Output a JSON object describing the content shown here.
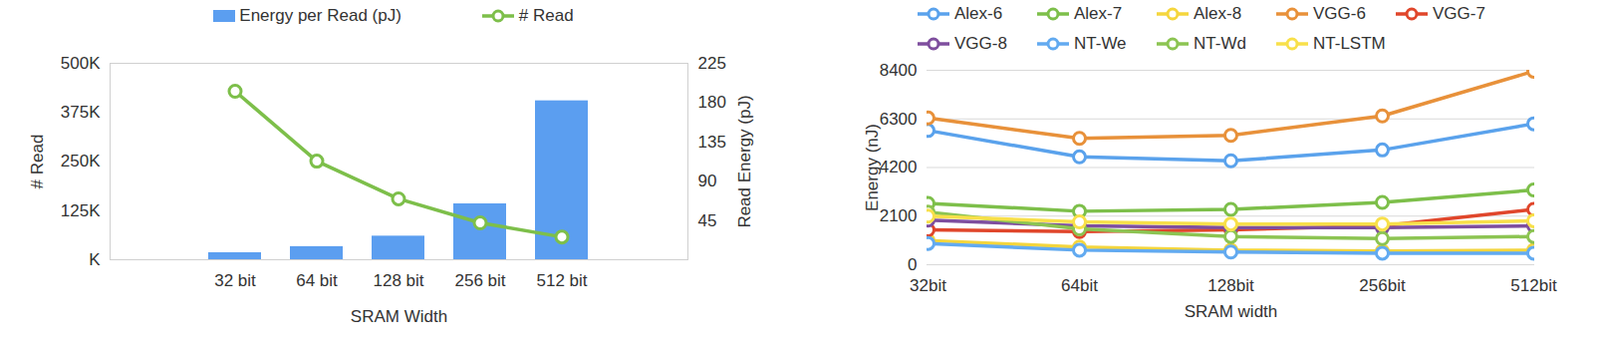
{
  "chart_data": [
    {
      "type": "bar",
      "categories": [
        "32 bit",
        "64 bit",
        "128 bit",
        "256 bit",
        "512 bit"
      ],
      "x_label": "SRAM Width",
      "y_label": "# Read",
      "y2_label": "Read Energy (pJ)",
      "ylim": [
        0,
        500000
      ],
      "yticks": [
        {
          "value": 0,
          "label": "K"
        },
        {
          "value": 125000,
          "label": "125K"
        },
        {
          "value": 250000,
          "label": "250K"
        },
        {
          "value": 375000,
          "label": "375K"
        },
        {
          "value": 500000,
          "label": "500K"
        }
      ],
      "y2lim": [
        0,
        225
      ],
      "y2ticks": [
        45,
        90,
        135,
        180,
        225
      ],
      "legend": "top",
      "series": [
        {
          "name": "Energy per Read (pJ)",
          "type": "bar",
          "axis": "y2",
          "color": "#5b9ef0",
          "values": [
            8,
            15,
            27,
            64,
            182
          ]
        },
        {
          "name": "# Read",
          "type": "line",
          "color": "#7dbf4a",
          "marker": "circle",
          "values": [
            429000,
            251000,
            155000,
            94000,
            58000
          ]
        }
      ]
    },
    {
      "type": "line",
      "categories": [
        "32bit",
        "64bit",
        "128bit",
        "256bit",
        "512bit"
      ],
      "x_label": "SRAM width",
      "y_label": "Energy (nJ)",
      "ylim": [
        0,
        8400
      ],
      "yticks": [
        0,
        2100,
        4200,
        6300,
        8400
      ],
      "grid": true,
      "legend": "top",
      "series": [
        {
          "name": "Alex-6",
          "color": "#5aa2ec",
          "marker": "circle",
          "values": [
            5800,
            4660,
            4490,
            4960,
            6090
          ]
        },
        {
          "name": "Alex-7",
          "color": "#7dbf4a",
          "marker": "circle",
          "values": [
            2650,
            2310,
            2390,
            2690,
            3230
          ]
        },
        {
          "name": "Alex-8",
          "color": "#f5d63d",
          "marker": "circle",
          "values": [
            1050,
            760,
            630,
            590,
            630
          ]
        },
        {
          "name": "VGG-6",
          "color": "#e8913a",
          "marker": "circle",
          "values": [
            6340,
            5460,
            5590,
            6430,
            8360
          ]
        },
        {
          "name": "VGG-7",
          "color": "#e0462b",
          "marker": "circle",
          "values": [
            1510,
            1430,
            1510,
            1680,
            2390
          ]
        },
        {
          "name": "VGG-8",
          "color": "#7e4e9e",
          "marker": "circle",
          "values": [
            1930,
            1680,
            1600,
            1600,
            1680
          ]
        },
        {
          "name": "NT-We",
          "color": "#62aaf0",
          "marker": "circle",
          "values": [
            920,
            630,
            550,
            500,
            500
          ]
        },
        {
          "name": "NT-Wd",
          "color": "#8cc452",
          "marker": "circle",
          "values": [
            2270,
            1550,
            1220,
            1130,
            1220
          ]
        },
        {
          "name": "NT-LSTM",
          "color": "#f8e04a",
          "marker": "circle",
          "values": [
            2100,
            1850,
            1760,
            1760,
            1900
          ]
        }
      ]
    }
  ]
}
